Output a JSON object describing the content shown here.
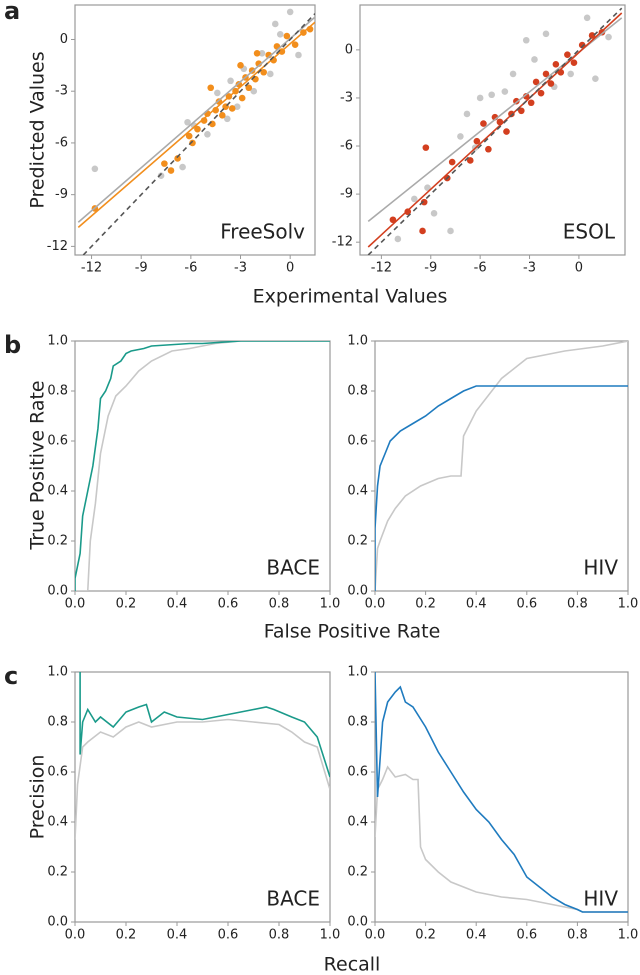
{
  "chart_data": [
    {
      "type": "scatter",
      "panel_label": "a",
      "ylabel": "Predicted Values",
      "xlabel": "Experimental Values",
      "label": "FreeSolv",
      "xlim": [
        -13,
        1.5
      ],
      "ylim": [
        -12.5,
        2
      ],
      "xticks": [
        -12,
        -9,
        -6,
        -3,
        0
      ],
      "yticks": [
        -12,
        -9,
        -6,
        -3,
        0
      ],
      "series": [
        {
          "type": "scatter",
          "color": "#c8c8c8",
          "x": [
            -11.8,
            -7.8,
            -6.5,
            -5.8,
            -5.0,
            -4.4,
            -3.8,
            -3.2,
            -2.8,
            -2.2,
            -1.7,
            -1.2,
            -0.6,
            0,
            0.5,
            -6.2,
            -3.6,
            -0.9
          ],
          "values": [
            -7.5,
            -7.9,
            -7.4,
            -5.0,
            -5.5,
            -3.1,
            -4.6,
            -3.9,
            -1.7,
            -3.0,
            -0.8,
            -2.0,
            0.3,
            1.6,
            -0.9,
            -4.8,
            -2.4,
            0.9
          ]
        },
        {
          "type": "scatter",
          "color": "#f28e1c",
          "x": [
            -11.8,
            -7.6,
            -7.2,
            -6.8,
            -6.1,
            -5.9,
            -5.6,
            -5.2,
            -5.0,
            -4.7,
            -4.5,
            -4.3,
            -4.1,
            -3.9,
            -3.7,
            -3.5,
            -3.3,
            -3.1,
            -2.9,
            -2.7,
            -2.5,
            -2.3,
            -2.1,
            -1.9,
            -1.6,
            -1.3,
            -1.0,
            -0.8,
            -0.5,
            -0.2,
            0.3,
            0.8,
            1.2,
            -3.0,
            -4.8,
            -2.0
          ],
          "values": [
            -9.8,
            -7.2,
            -7.6,
            -6.9,
            -5.6,
            -6.0,
            -5.2,
            -4.7,
            -4.3,
            -4.9,
            -4.1,
            -3.6,
            -4.4,
            -3.9,
            -3.3,
            -4.0,
            -3.0,
            -2.6,
            -3.4,
            -2.2,
            -2.8,
            -1.8,
            -2.3,
            -1.4,
            -1.9,
            -0.9,
            -1.2,
            -0.4,
            -0.7,
            0.2,
            -0.3,
            0.4,
            0.6,
            -1.5,
            -2.8,
            -0.8
          ]
        },
        {
          "type": "line",
          "color": "#aaaaaa",
          "x": [
            -12.8,
            1.5
          ],
          "values": [
            -10.6,
            1.3
          ]
        },
        {
          "type": "line",
          "color": "#f28e1c",
          "x": [
            -12.8,
            1.5
          ],
          "values": [
            -10.9,
            1.0
          ]
        },
        {
          "type": "line",
          "color": "#555555",
          "dashed": true,
          "x": [
            -12.5,
            1.5
          ],
          "values": [
            -12.5,
            1.5
          ]
        }
      ]
    },
    {
      "type": "scatter",
      "label": "ESOL",
      "xlim": [
        -13.3,
        2.8
      ],
      "ylim": [
        -12.8,
        2.8
      ],
      "xticks": [
        -12,
        -9,
        -6,
        -3,
        0
      ],
      "yticks": [
        -12,
        -9,
        -6,
        -3,
        0
      ],
      "series": [
        {
          "type": "scatter",
          "color": "#c8c8c8",
          "x": [
            -11.0,
            -10.0,
            -9.2,
            -7.8,
            -7.2,
            -6.8,
            -6.0,
            -5.3,
            -4.5,
            -4.0,
            -3.2,
            -2.7,
            -2.0,
            -1.5,
            -0.5,
            0.5,
            1.0,
            1.8,
            -8.8,
            -6.3
          ],
          "values": [
            -11.8,
            -9.3,
            -8.6,
            -11.3,
            -5.4,
            -4.0,
            -3.0,
            -2.8,
            -2.6,
            -1.5,
            0.6,
            -0.6,
            1.0,
            -2.3,
            -1.5,
            2.0,
            -1.8,
            0.8,
            -10.2,
            -6.1
          ]
        },
        {
          "type": "scatter",
          "color": "#d33f1f",
          "x": [
            -11.3,
            -10.4,
            -9.5,
            -9.3,
            -8.0,
            -7.7,
            -6.6,
            -6.2,
            -5.8,
            -5.5,
            -5.1,
            -4.8,
            -4.4,
            -4.1,
            -3.8,
            -3.5,
            -3.2,
            -2.9,
            -2.6,
            -2.3,
            -2.0,
            -1.7,
            -1.4,
            -1.1,
            -0.7,
            -0.3,
            0.2,
            0.8,
            1.4,
            -9.4
          ],
          "values": [
            -10.6,
            -10.1,
            -11.3,
            -6.1,
            -8.0,
            -7.0,
            -6.9,
            -5.7,
            -4.6,
            -6.2,
            -4.2,
            -4.5,
            -5.1,
            -4.0,
            -3.2,
            -3.8,
            -2.9,
            -3.3,
            -2.0,
            -2.7,
            -1.5,
            -2.1,
            -0.9,
            -1.4,
            -0.3,
            -0.8,
            0.3,
            0.9,
            1.1,
            -9.5
          ]
        },
        {
          "type": "line",
          "color": "#aaaaaa",
          "x": [
            -12.8,
            2.6
          ],
          "values": [
            -10.7,
            2.0
          ]
        },
        {
          "type": "line",
          "color": "#d33f1f",
          "x": [
            -12.8,
            2.6
          ],
          "values": [
            -12.3,
            2.3
          ]
        },
        {
          "type": "line",
          "color": "#555555",
          "dashed": true,
          "x": [
            -12.8,
            2.6
          ],
          "values": [
            -12.8,
            2.6
          ]
        }
      ]
    },
    {
      "type": "line",
      "panel_label": "b",
      "ylabel": "True Positive Rate",
      "xlabel": "False Positive Rate",
      "label": "BACE",
      "xlim": [
        0,
        1
      ],
      "ylim": [
        0,
        1
      ],
      "xticks": [
        {
          "value": 0,
          "label": "0.0"
        },
        0.2,
        0.4,
        0.6,
        0.8,
        {
          "value": 1,
          "label": "1.0"
        }
      ],
      "yticks": [
        {
          "value": 0,
          "label": "0.0"
        },
        0.2,
        0.4,
        0.6,
        0.8,
        {
          "value": 1,
          "label": "1.0"
        }
      ],
      "series": [
        {
          "color": "#c8c8c8",
          "x": [
            0,
            0.05,
            0.06,
            0.08,
            0.1,
            0.13,
            0.16,
            0.2,
            0.25,
            0.3,
            0.38,
            0.45,
            0.55,
            0.65,
            1.0
          ],
          "values": [
            0,
            0,
            0.2,
            0.35,
            0.55,
            0.7,
            0.78,
            0.82,
            0.88,
            0.92,
            0.96,
            0.97,
            0.99,
            1.0,
            1.0
          ]
        },
        {
          "color": "#1a9a8a",
          "x": [
            0,
            0,
            0.02,
            0.03,
            0.05,
            0.07,
            0.09,
            0.1,
            0.12,
            0.14,
            0.15,
            0.18,
            0.2,
            0.22,
            0.27,
            0.3,
            0.45,
            0.5,
            0.65,
            1.0
          ],
          "values": [
            0,
            0.05,
            0.15,
            0.3,
            0.4,
            0.5,
            0.65,
            0.77,
            0.8,
            0.85,
            0.9,
            0.92,
            0.95,
            0.96,
            0.97,
            0.98,
            0.99,
            0.99,
            1.0,
            1.0
          ]
        }
      ]
    },
    {
      "type": "line",
      "label": "HIV",
      "xlim": [
        0,
        1
      ],
      "ylim": [
        0,
        1
      ],
      "xticks": [
        {
          "value": 0,
          "label": "0.0"
        },
        0.2,
        0.4,
        0.6,
        0.8,
        {
          "value": 1,
          "label": "1.0"
        }
      ],
      "yticks": [
        {
          "value": 0,
          "label": "0.0"
        },
        0.2,
        0.4,
        0.6,
        0.8,
        {
          "value": 1,
          "label": "1.0"
        }
      ],
      "series": [
        {
          "color": "#c8c8c8",
          "x": [
            0,
            0.01,
            0.02,
            0.05,
            0.08,
            0.12,
            0.18,
            0.25,
            0.3,
            0.34,
            0.35,
            0.4,
            0.5,
            0.6,
            0.75,
            0.9,
            1.0
          ],
          "values": [
            0,
            0.17,
            0.2,
            0.28,
            0.33,
            0.38,
            0.42,
            0.45,
            0.46,
            0.46,
            0.62,
            0.72,
            0.85,
            0.93,
            0.96,
            0.98,
            1.0
          ]
        },
        {
          "color": "#1f7bbf",
          "x": [
            0,
            0,
            0.01,
            0.02,
            0.04,
            0.06,
            0.1,
            0.15,
            0.2,
            0.25,
            0.3,
            0.35,
            0.4,
            1.0
          ],
          "values": [
            0,
            0.25,
            0.42,
            0.5,
            0.55,
            0.6,
            0.64,
            0.67,
            0.7,
            0.74,
            0.77,
            0.8,
            0.82,
            0.82
          ]
        }
      ]
    },
    {
      "type": "line",
      "panel_label": "c",
      "ylabel": "Precision",
      "xlabel": "Recall",
      "label": "BACE",
      "xlim": [
        0,
        1
      ],
      "ylim": [
        0,
        1
      ],
      "xticks": [
        {
          "value": 0,
          "label": "0.0"
        },
        0.2,
        0.4,
        0.6,
        0.8,
        {
          "value": 1,
          "label": "1.0"
        }
      ],
      "yticks": [
        {
          "value": 0,
          "label": "0.0"
        },
        0.2,
        0.4,
        0.6,
        0.8,
        {
          "value": 1,
          "label": "1.0"
        }
      ],
      "series": [
        {
          "color": "#c8c8c8",
          "x": [
            0,
            0.01,
            0.03,
            0.05,
            0.1,
            0.15,
            0.2,
            0.25,
            0.3,
            0.4,
            0.5,
            0.6,
            0.7,
            0.8,
            0.85,
            0.9,
            0.95,
            1.0
          ],
          "values": [
            0.33,
            0.55,
            0.7,
            0.72,
            0.76,
            0.74,
            0.78,
            0.8,
            0.78,
            0.8,
            0.8,
            0.81,
            0.8,
            0.79,
            0.76,
            0.72,
            0.7,
            0.53
          ]
        },
        {
          "color": "#1a9a8a",
          "x": [
            0.02,
            0.02,
            0.03,
            0.05,
            0.08,
            0.1,
            0.15,
            0.2,
            0.25,
            0.28,
            0.3,
            0.35,
            0.4,
            0.5,
            0.6,
            0.7,
            0.75,
            0.78,
            0.85,
            0.9,
            0.95,
            1.0
          ],
          "values": [
            1.0,
            0.67,
            0.8,
            0.85,
            0.8,
            0.82,
            0.78,
            0.84,
            0.86,
            0.87,
            0.8,
            0.84,
            0.82,
            0.81,
            0.83,
            0.85,
            0.86,
            0.85,
            0.82,
            0.8,
            0.74,
            0.58
          ]
        }
      ]
    },
    {
      "type": "line",
      "label": "HIV",
      "xlim": [
        0,
        1
      ],
      "ylim": [
        0,
        1
      ],
      "xticks": [
        {
          "value": 0,
          "label": "0.0"
        },
        0.2,
        0.4,
        0.6,
        0.8,
        {
          "value": 1,
          "label": "1.0"
        }
      ],
      "yticks": [
        {
          "value": 0,
          "label": "0.0"
        },
        0.2,
        0.4,
        0.6,
        0.8,
        {
          "value": 1,
          "label": "1.0"
        }
      ],
      "series": [
        {
          "color": "#c8c8c8",
          "x": [
            0,
            0.01,
            0.03,
            0.05,
            0.08,
            0.12,
            0.15,
            0.17,
            0.18,
            0.2,
            0.25,
            0.3,
            0.4,
            0.5,
            0.6,
            0.7,
            0.8,
            0.82,
            1.0
          ],
          "values": [
            0.34,
            0.53,
            0.57,
            0.62,
            0.58,
            0.59,
            0.57,
            0.57,
            0.3,
            0.25,
            0.2,
            0.16,
            0.12,
            0.1,
            0.09,
            0.07,
            0.05,
            0.04,
            0.04
          ]
        },
        {
          "color": "#1f7bbf",
          "x": [
            0,
            0.01,
            0.03,
            0.05,
            0.08,
            0.1,
            0.12,
            0.15,
            0.2,
            0.25,
            0.3,
            0.35,
            0.4,
            0.45,
            0.5,
            0.55,
            0.6,
            0.65,
            0.7,
            0.75,
            0.8,
            0.82,
            1.0
          ],
          "values": [
            1.0,
            0.5,
            0.8,
            0.88,
            0.92,
            0.94,
            0.88,
            0.86,
            0.78,
            0.68,
            0.6,
            0.52,
            0.45,
            0.4,
            0.33,
            0.27,
            0.18,
            0.14,
            0.1,
            0.07,
            0.05,
            0.04,
            0.04
          ]
        }
      ]
    }
  ]
}
